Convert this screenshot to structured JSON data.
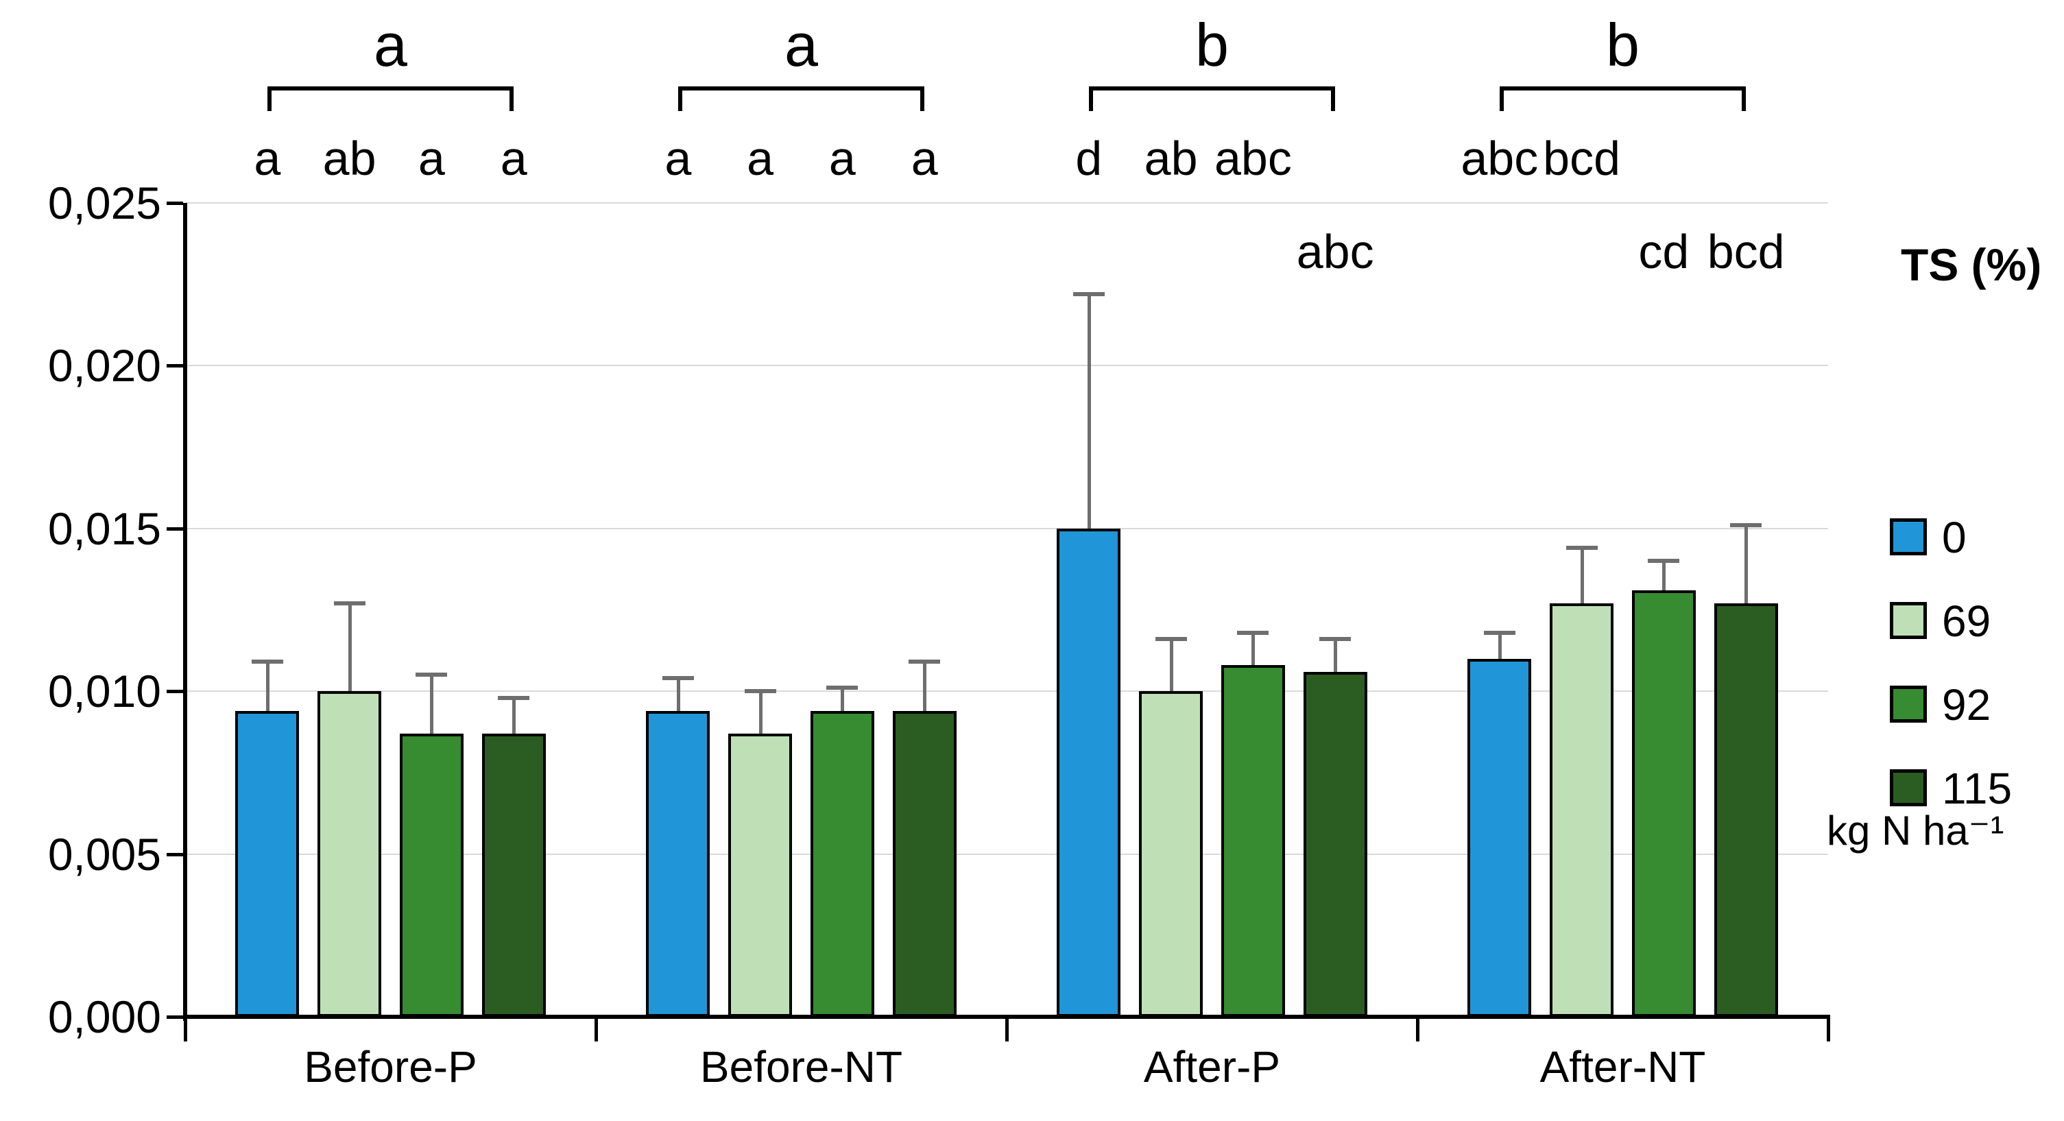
{
  "chart_data": {
    "type": "bar",
    "title": "",
    "categories": [
      "Before-P",
      "Before-NT",
      "After-P",
      "After-NT"
    ],
    "group_letters": [
      "a",
      "a",
      "b",
      "b"
    ],
    "series": [
      {
        "name": "0",
        "color": "#2096d8",
        "values": [
          0.0094,
          0.0094,
          0.015,
          0.011
        ],
        "errors_up": [
          0.0015,
          0.001,
          0.0072,
          0.0008
        ]
      },
      {
        "name": "69",
        "color": "#bfe0b7",
        "values": [
          0.01,
          0.0087,
          0.01,
          0.0127
        ],
        "errors_up": [
          0.0027,
          0.0013,
          0.0016,
          0.0017
        ]
      },
      {
        "name": "92",
        "color": "#378b31",
        "values": [
          0.0087,
          0.0094,
          0.0108,
          0.0131
        ],
        "errors_up": [
          0.0018,
          0.0007,
          0.001,
          0.0009
        ]
      },
      {
        "name": "115",
        "color": "#2b5d22",
        "values": [
          0.0087,
          0.0094,
          0.0106,
          0.0127
        ],
        "errors_up": [
          0.0011,
          0.0015,
          0.001,
          0.0024
        ]
      }
    ],
    "bar_letters": [
      {
        "category": 0,
        "letters": [
          {
            "text": "a",
            "bar": 0,
            "row": 1
          },
          {
            "text": "ab",
            "bar": 1,
            "row": 1
          },
          {
            "text": "a",
            "bar": 2,
            "row": 1
          },
          {
            "text": "a",
            "bar": 3,
            "row": 1
          }
        ]
      },
      {
        "category": 1,
        "letters": [
          {
            "text": "a",
            "bar": 0,
            "row": 1
          },
          {
            "text": "a",
            "bar": 1,
            "row": 1
          },
          {
            "text": "a",
            "bar": 2,
            "row": 1
          },
          {
            "text": "a",
            "bar": 3,
            "row": 1
          }
        ]
      },
      {
        "category": 2,
        "letters": [
          {
            "text": "d",
            "bar": 0,
            "row": 1
          },
          {
            "text": "ab",
            "bar": 1,
            "row": 1
          },
          {
            "text": "abc",
            "bar": 2,
            "row": 1
          },
          {
            "text": "abc",
            "bar": 3,
            "row": 2
          }
        ]
      },
      {
        "category": 3,
        "letters": [
          {
            "text": "abc",
            "bar": 0,
            "row": 1
          },
          {
            "text": "bcd",
            "bar": 1,
            "row": 1
          },
          {
            "text": "cd",
            "bar": 2,
            "row": 2
          },
          {
            "text": "bcd",
            "bar": 3,
            "row": 2
          }
        ]
      }
    ],
    "ylim": [
      0,
      0.025
    ],
    "ytick_step": 0.005,
    "ytick_labels": [
      "0,000",
      "0,005",
      "0,010",
      "0,015",
      "0,020",
      "0,025"
    ],
    "grid": true,
    "xlabel": "",
    "ylabel": "",
    "legend": {
      "position": "right",
      "title": "TS (%)",
      "entries": [
        "0",
        "69",
        "92",
        "115"
      ],
      "footer": "kg N ha⁻¹"
    },
    "colors": {
      "error_bar": "#6e6e6e",
      "gridline": "#d9d9d9",
      "axis": "#000000",
      "bar_border": "#000000"
    }
  }
}
